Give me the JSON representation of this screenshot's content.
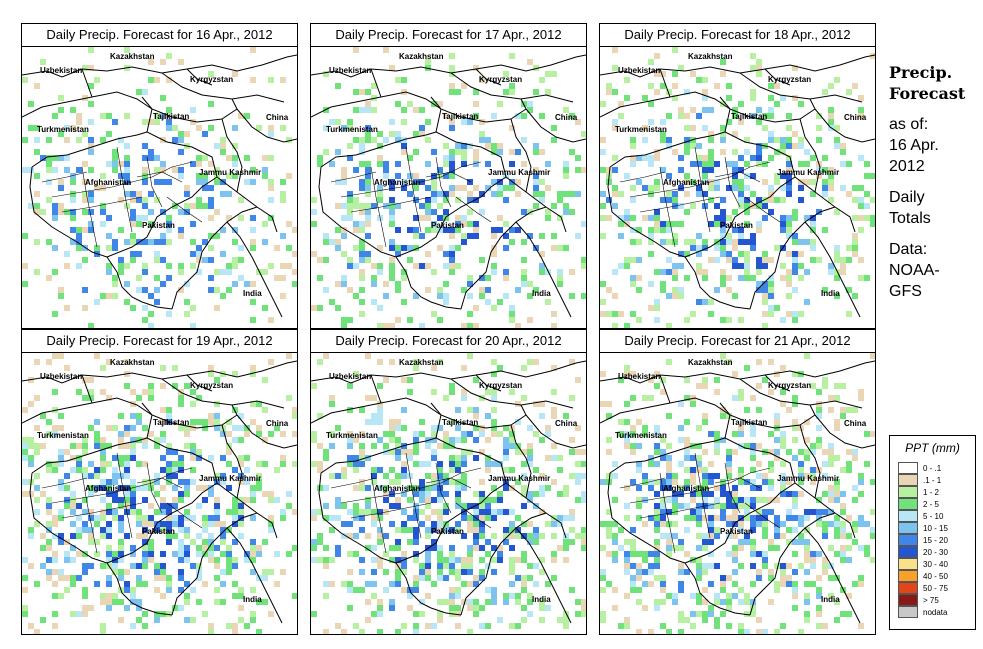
{
  "panels": [
    {
      "title": "Daily Precip. Forecast for  16 Apr., 2012",
      "seed": 16,
      "density": 0.35
    },
    {
      "title": "Daily Precip. Forecast for  17 Apr., 2012",
      "seed": 17,
      "density": 0.42
    },
    {
      "title": "Daily Precip. Forecast for  18 Apr., 2012",
      "seed": 18,
      "density": 0.5
    },
    {
      "title": "Daily Precip. Forecast for  19 Apr., 2012",
      "seed": 19,
      "density": 0.55
    },
    {
      "title": "Daily Precip. Forecast for  20 Apr., 2012",
      "seed": 20,
      "density": 0.6
    },
    {
      "title": "Daily Precip. Forecast for  21 Apr., 2012",
      "seed": 21,
      "density": 0.58
    }
  ],
  "map_labels": {
    "kazakhstan": "Kazakhstan",
    "uzbekistan": "Uzbekistan",
    "kyrgyzstan": "Kyrgyzstan",
    "tajikistan": "Tajikistan",
    "china": "China",
    "turkmenistan": "Turkmenistan",
    "afghanistan": "Afghanistan",
    "jammu_kashmir": "Jammu Kashmir",
    "pakistan": "Pakistan",
    "india": "India"
  },
  "side": {
    "title_line1": "Precip.",
    "title_line2": "Forecast",
    "asof_line1": "as of:",
    "asof_line2": "16 Apr.",
    "asof_line3": "2012",
    "totals_line1": "Daily",
    "totals_line2": "Totals",
    "source_line1": "Data:",
    "source_line2": "NOAA-",
    "source_line3": "GFS"
  },
  "legend": {
    "title": "PPT (mm)",
    "items": [
      {
        "label": "0 - .1",
        "color": "#ffffff"
      },
      {
        "label": ".1 - 1",
        "color": "#ead6b4"
      },
      {
        "label": "1 - 2",
        "color": "#b6f0a0"
      },
      {
        "label": "2 - 5",
        "color": "#6fe27a"
      },
      {
        "label": "5 - 10",
        "color": "#b7e6f6"
      },
      {
        "label": "10 - 15",
        "color": "#7cc3f0"
      },
      {
        "label": "15 - 20",
        "color": "#3f86e8"
      },
      {
        "label": "20 - 30",
        "color": "#2456d2"
      },
      {
        "label": "30 - 40",
        "color": "#fbe08a"
      },
      {
        "label": "40 - 50",
        "color": "#f8a02c"
      },
      {
        "label": "50 - 75",
        "color": "#e0461a"
      },
      {
        "label": "> 75",
        "color": "#8a1a1a"
      },
      {
        "label": "nodata",
        "color": "#c8c8c8"
      }
    ]
  }
}
